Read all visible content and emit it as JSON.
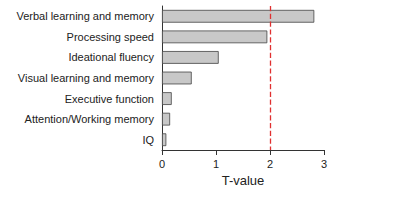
{
  "chart_data": {
    "type": "bar",
    "orientation": "horizontal",
    "categories": [
      "Verbal learning and memory",
      "Processing speed",
      "Ideational fluency",
      "Visual learning and memory",
      "Executive function",
      "Attention/Working memory",
      "IQ"
    ],
    "values": [
      2.82,
      1.95,
      1.05,
      0.55,
      0.18,
      0.15,
      0.08
    ],
    "color": "#c8c8c8",
    "x_label": "T-value",
    "xlim": [
      0,
      3
    ],
    "xticks": [
      0,
      1,
      2,
      3
    ],
    "threshold": 2,
    "grid": false
  }
}
